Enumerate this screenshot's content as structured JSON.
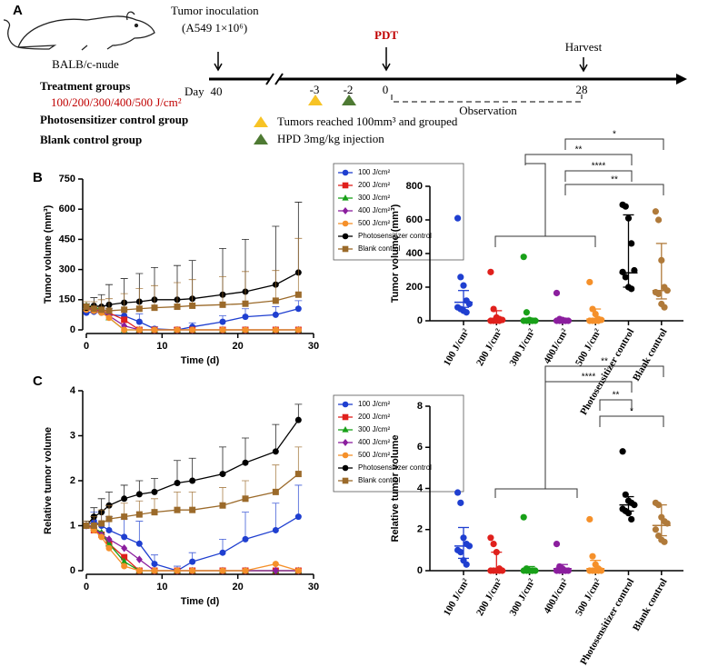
{
  "panel_labels": [
    "A",
    "B",
    "C"
  ],
  "timeline": {
    "animal": "BALB/c-nude",
    "inoculation": "Tumor inoculation",
    "cells": "(A549 1×10⁶)",
    "day": "Day",
    "day_40": "40",
    "pdt": "PDT",
    "day_m3": "-3",
    "day_m2": "-2",
    "day_0": "0",
    "day_28": "28",
    "harvest": "Harvest",
    "observation": "Observation",
    "treatment": "Treatment groups",
    "doses": "100/200/300/400/500 J/cm²",
    "ps_group": "Photosensitizer control group",
    "blank_group": "Blank control group",
    "note_yellow": "Tumors reached 100mm³ and grouped",
    "note_green": "HPD 3mg/kg injection"
  },
  "chart_data": [
    {
      "type": "line",
      "xlabel": "Time (d)",
      "ylabel": "Tumor volume (mm³)",
      "xlim": [
        0,
        30
      ],
      "xticks": [
        0,
        10,
        20,
        30
      ],
      "ylim": [
        0,
        750
      ],
      "yticks": [
        0,
        150,
        300,
        450,
        600,
        750
      ],
      "x": [
        0,
        1,
        2,
        3,
        5,
        7,
        9,
        12,
        14,
        18,
        21,
        25,
        28
      ],
      "series": [
        {
          "name": "100 J/cm²",
          "color": "#1f3fd0",
          "marker": "circle",
          "values": [
            85,
            90,
            85,
            75,
            70,
            40,
            5,
            0,
            15,
            40,
            65,
            75,
            105
          ],
          "errors": [
            20,
            30,
            30,
            30,
            30,
            40,
            10,
            10,
            20,
            30,
            40,
            40,
            40
          ]
        },
        {
          "name": "200 J/cm²",
          "color": "#e0201c",
          "marker": "square",
          "values": [
            110,
            100,
            95,
            85,
            50,
            0,
            0,
            0,
            0,
            0,
            0,
            0,
            0
          ]
        },
        {
          "name": "300 J/cm²",
          "color": "#18a018",
          "marker": "triangle",
          "values": [
            120,
            115,
            100,
            60,
            0,
            0,
            0,
            0,
            0,
            0,
            0,
            0,
            0
          ]
        },
        {
          "name": "400 J/cm²",
          "color": "#8b1e9e",
          "marker": "diamond",
          "values": [
            105,
            100,
            90,
            70,
            20,
            0,
            0,
            0,
            0,
            0,
            0,
            0,
            0
          ]
        },
        {
          "name": "500 J/cm²",
          "color": "#f5902a",
          "marker": "circle",
          "values": [
            100,
            95,
            85,
            60,
            0,
            0,
            0,
            0,
            0,
            0,
            0,
            0,
            0
          ]
        },
        {
          "name": "Photosensitizer control",
          "color": "#000000",
          "marker": "circle",
          "values": [
            110,
            120,
            115,
            125,
            135,
            140,
            150,
            150,
            155,
            175,
            190,
            225,
            285
          ],
          "errors": [
            20,
            40,
            60,
            100,
            120,
            140,
            160,
            170,
            190,
            230,
            260,
            290,
            350
          ]
        },
        {
          "name": "Blank control",
          "color": "#9b6a2a",
          "marker": "square",
          "values": [
            115,
            105,
            100,
            95,
            100,
            105,
            110,
            115,
            120,
            125,
            130,
            145,
            175
          ],
          "errors": [
            25,
            35,
            50,
            60,
            80,
            100,
            110,
            120,
            130,
            140,
            160,
            150,
            280
          ]
        }
      ]
    },
    {
      "type": "dot",
      "ylabel": "Tumor volume (mm³)",
      "ylim": [
        0,
        800
      ],
      "yticks": [
        0,
        200,
        400,
        600,
        800
      ],
      "categories": [
        "100 J/cm²",
        "200 J/cm²",
        "300 J/cm²",
        "400J/cm²",
        "500 J/cm²",
        "Photosensitizer control",
        "Blank control"
      ],
      "colors": [
        "#1f3fd0",
        "#e0201c",
        "#18a018",
        "#8b1e9e",
        "#f5902a",
        "#000000",
        "#b07a3a"
      ],
      "points": [
        [
          610,
          260,
          210,
          120,
          100,
          80,
          70,
          60,
          50
        ],
        [
          290,
          70,
          20,
          10,
          5,
          0,
          0,
          0,
          0
        ],
        [
          380,
          50,
          5,
          0,
          0,
          0,
          0,
          0,
          0
        ],
        [
          165,
          10,
          5,
          0,
          0,
          0,
          0,
          0,
          0
        ],
        [
          230,
          70,
          40,
          10,
          5,
          0,
          0,
          0,
          0
        ],
        [
          690,
          680,
          610,
          460,
          300,
          290,
          260,
          200,
          190
        ],
        [
          650,
          600,
          360,
          200,
          180,
          170,
          160,
          100,
          80
        ]
      ],
      "center": [
        110,
        5,
        5,
        5,
        10,
        285,
        180
      ],
      "low": [
        80,
        0,
        0,
        0,
        0,
        200,
        130
      ],
      "high": [
        180,
        60,
        10,
        10,
        70,
        630,
        460
      ],
      "significance": [
        "*",
        "**",
        "****",
        "**"
      ]
    },
    {
      "type": "line",
      "xlabel": "Time (d)",
      "ylabel": "Relative tumor volume",
      "xlim": [
        0,
        30
      ],
      "xticks": [
        0,
        10,
        20,
        30
      ],
      "ylim": [
        0,
        4
      ],
      "yticks": [
        0,
        1,
        2,
        3,
        4
      ],
      "x": [
        0,
        1,
        2,
        3,
        5,
        7,
        9,
        12,
        14,
        18,
        21,
        25,
        28
      ],
      "series": [
        {
          "name": "100 J/cm²",
          "color": "#1f3fd0",
          "marker": "circle",
          "values": [
            1,
            1.1,
            1.0,
            0.9,
            0.75,
            0.6,
            0.15,
            0,
            0.2,
            0.4,
            0.7,
            0.9,
            1.2
          ],
          "errors": [
            0.1,
            0.2,
            0.3,
            0.3,
            0.4,
            0.5,
            0.2,
            0.1,
            0.2,
            0.3,
            0.6,
            0.6,
            0.7
          ]
        },
        {
          "name": "200 J/cm²",
          "color": "#e0201c",
          "marker": "square",
          "values": [
            1,
            0.9,
            0.8,
            0.6,
            0.3,
            0,
            0,
            0,
            0,
            0,
            0,
            0,
            0
          ]
        },
        {
          "name": "300 J/cm²",
          "color": "#18a018",
          "marker": "triangle",
          "values": [
            1,
            0.95,
            0.85,
            0.6,
            0.2,
            0,
            0,
            0,
            0,
            0,
            0,
            0,
            0
          ]
        },
        {
          "name": "400 J/cm²",
          "color": "#8b1e9e",
          "marker": "diamond",
          "values": [
            1,
            0.95,
            0.8,
            0.7,
            0.5,
            0.25,
            0,
            0,
            0,
            0,
            0,
            0,
            0
          ]
        },
        {
          "name": "500 J/cm²",
          "color": "#f5902a",
          "marker": "circle",
          "values": [
            1,
            0.9,
            0.75,
            0.5,
            0.1,
            0,
            0,
            0,
            0,
            0,
            0,
            0.15,
            0
          ]
        },
        {
          "name": "Photosensitizer control",
          "color": "#000000",
          "marker": "circle",
          "values": [
            1,
            1.2,
            1.3,
            1.45,
            1.6,
            1.7,
            1.75,
            1.95,
            2.0,
            2.15,
            2.4,
            2.65,
            3.35
          ],
          "errors": [
            0.1,
            0.2,
            0.3,
            0.3,
            0.3,
            0.3,
            0.3,
            0.5,
            0.5,
            0.6,
            0.55,
            0.6,
            0.35
          ]
        },
        {
          "name": "Blank control",
          "color": "#9b6a2a",
          "marker": "square",
          "values": [
            1,
            1.0,
            1.05,
            1.15,
            1.2,
            1.25,
            1.3,
            1.35,
            1.35,
            1.45,
            1.6,
            1.75,
            2.15
          ],
          "errors": [
            0.1,
            0.2,
            0.3,
            0.3,
            0.3,
            0.3,
            0.3,
            0.4,
            0.4,
            0.4,
            0.4,
            0.6,
            0.6
          ]
        }
      ]
    },
    {
      "type": "dot",
      "ylabel": "Relative tumor volume",
      "ylim": [
        0,
        8
      ],
      "yticks": [
        0,
        2,
        4,
        6,
        8
      ],
      "categories": [
        "100 J/cm²",
        "200 J/cm²",
        "300 J/cm²",
        "400J/cm²",
        "500 J/cm²",
        "Photosensitizer control",
        "Blank control"
      ],
      "colors": [
        "#1f3fd0",
        "#e0201c",
        "#18a018",
        "#8b1e9e",
        "#f5902a",
        "#000000",
        "#b07a3a"
      ],
      "points": [
        [
          3.8,
          3.3,
          1.6,
          1.3,
          1.2,
          1.0,
          0.9,
          0.5,
          0.3
        ],
        [
          1.6,
          1.3,
          0.9,
          0.1,
          0,
          0,
          0,
          0,
          0
        ],
        [
          2.6,
          0.1,
          0,
          0,
          0,
          0,
          0,
          0,
          0
        ],
        [
          1.3,
          0.2,
          0.1,
          0,
          0,
          0,
          0,
          0,
          0
        ],
        [
          2.5,
          0.7,
          0.3,
          0.1,
          0,
          0,
          0,
          0,
          0
        ],
        [
          5.8,
          3.7,
          3.4,
          3.3,
          3.2,
          3.0,
          2.9,
          2.8,
          2.5
        ],
        [
          3.3,
          3.2,
          2.6,
          2.4,
          2.3,
          2.0,
          1.7,
          1.5,
          1.4
        ]
      ],
      "center": [
        1.2,
        0,
        0,
        0.1,
        0.1,
        3.2,
        2.2
      ],
      "low": [
        0.6,
        0,
        0,
        0,
        0,
        2.9,
        1.7
      ],
      "high": [
        2.1,
        0.9,
        0.2,
        0.3,
        0.5,
        3.6,
        3.2
      ],
      "significance": [
        "**",
        "****",
        "**",
        "*"
      ]
    }
  ]
}
